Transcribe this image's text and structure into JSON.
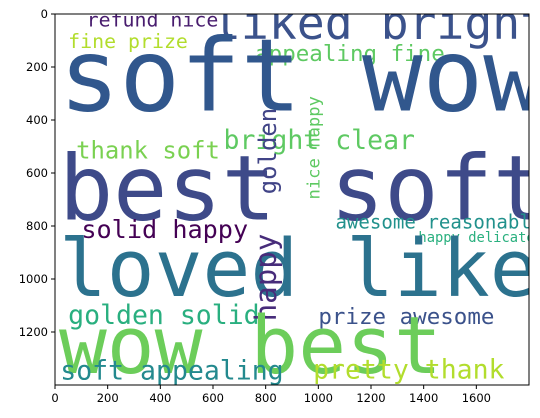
{
  "chart_data": {
    "type": "wordcloud",
    "title": "",
    "xlabel": "",
    "ylabel": "",
    "xlim": [
      0,
      1800
    ],
    "ylim": [
      1400,
      0
    ],
    "xticks": [
      0,
      200,
      400,
      600,
      800,
      1000,
      1200,
      1400,
      1600
    ],
    "yticks": [
      0,
      200,
      400,
      600,
      800,
      1000,
      1200
    ],
    "grid": false,
    "words": [
      {
        "text": "refund nice",
        "x": 120,
        "y": 48,
        "size": 75,
        "color": "#481c6e",
        "rotate": 0
      },
      {
        "text": "fine prize",
        "x": 50,
        "y": 128,
        "size": 75,
        "color": "#b2dd2d",
        "rotate": 0
      },
      {
        "text": "liked bright",
        "x": 600,
        "y": 95,
        "size": 175,
        "color": "#3b528b",
        "rotate": 0
      },
      {
        "text": "appealing fine",
        "x": 760,
        "y": 178,
        "size": 85,
        "color": "#5ec962",
        "rotate": 0
      },
      {
        "text": "soft wow",
        "x": 15,
        "y": 365,
        "size": 380,
        "color": "#31578d",
        "rotate": 0
      },
      {
        "text": "thank soft",
        "x": 80,
        "y": 545,
        "size": 90,
        "color": "#7ad151",
        "rotate": 0
      },
      {
        "text": "bright clear",
        "x": 640,
        "y": 510,
        "size": 100,
        "color": "#5ec962",
        "rotate": 0
      },
      {
        "text": "best soft",
        "x": 15,
        "y": 775,
        "size": 340,
        "color": "#3e4a89",
        "rotate": 0
      },
      {
        "text": "golden",
        "x": 840,
        "y": 680,
        "size": 90,
        "color": "#414487",
        "rotate": -90
      },
      {
        "text": "nice happy",
        "x": 1005,
        "y": 700,
        "size": 65,
        "color": "#5ec962",
        "rotate": -90
      },
      {
        "text": "solid happy",
        "x": 100,
        "y": 845,
        "size": 95,
        "color": "#440154",
        "rotate": 0
      },
      {
        "text": "awesome reasonable",
        "x": 1065,
        "y": 810,
        "size": 72,
        "color": "#21918c",
        "rotate": 0
      },
      {
        "text": "happy delicate",
        "x": 1380,
        "y": 860,
        "size": 52,
        "color": "#2ab07f",
        "rotate": 0
      },
      {
        "text": "loved liked",
        "x": 15,
        "y": 1065,
        "size": 300,
        "color": "#2c728e",
        "rotate": 0
      },
      {
        "text": "golden solid",
        "x": 50,
        "y": 1170,
        "size": 100,
        "color": "#29af7f",
        "rotate": 0
      },
      {
        "text": "prize awesome",
        "x": 1000,
        "y": 1170,
        "size": 85,
        "color": "#3b528b",
        "rotate": 0
      },
      {
        "text": "happy",
        "x": 840,
        "y": 1160,
        "size": 110,
        "color": "#472c7a",
        "rotate": -90
      },
      {
        "text": "wow best",
        "x": 15,
        "y": 1355,
        "size": 300,
        "color": "#6ccd5a",
        "rotate": 0
      },
      {
        "text": "soft appealing",
        "x": 20,
        "y": 1380,
        "size": 100,
        "color": "#23898e",
        "rotate": 0
      },
      {
        "text": "pretty thank",
        "x": 980,
        "y": 1375,
        "size": 100,
        "color": "#b2dd2d",
        "rotate": 0
      }
    ]
  }
}
